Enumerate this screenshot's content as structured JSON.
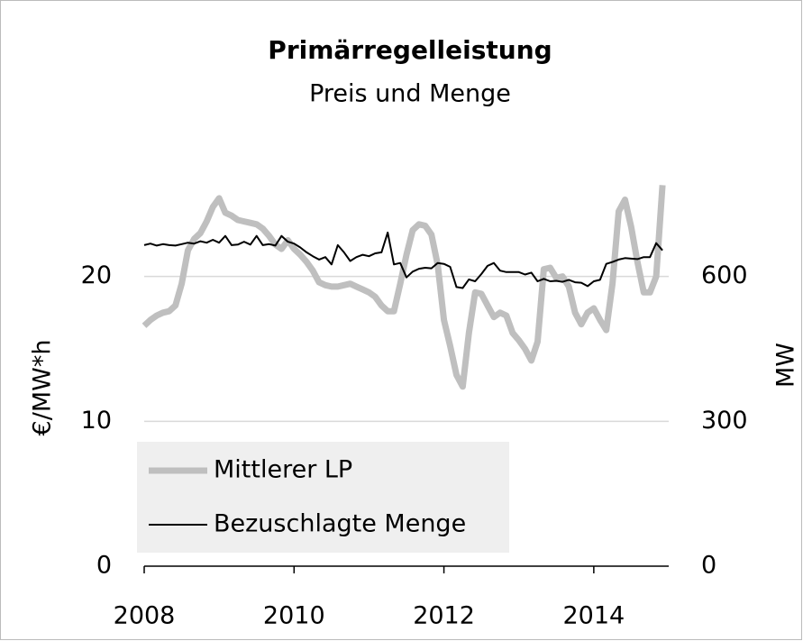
{
  "chart_data": {
    "type": "line",
    "title": "Primärregelleistung",
    "subtitle": "Preis und Menge",
    "ylabel": "€/MW*h",
    "y2label": "MW",
    "x": [
      2008,
      2008.083,
      2008.167,
      2008.25,
      2008.333,
      2008.417,
      2008.5,
      2008.583,
      2008.667,
      2008.75,
      2008.833,
      2008.917,
      2009,
      2009.083,
      2009.167,
      2009.25,
      2009.333,
      2009.417,
      2009.5,
      2009.583,
      2009.667,
      2009.75,
      2009.833,
      2009.917,
      2010,
      2010.083,
      2010.167,
      2010.25,
      2010.333,
      2010.417,
      2010.5,
      2010.583,
      2010.667,
      2010.75,
      2010.833,
      2010.917,
      2011,
      2011.083,
      2011.167,
      2011.25,
      2011.333,
      2011.417,
      2011.5,
      2011.583,
      2011.667,
      2011.75,
      2011.833,
      2011.917,
      2012,
      2012.083,
      2012.167,
      2012.25,
      2012.333,
      2012.417,
      2012.5,
      2012.583,
      2012.667,
      2012.75,
      2012.833,
      2012.917,
      2013,
      2013.083,
      2013.167,
      2013.25,
      2013.333,
      2013.417,
      2013.5,
      2013.583,
      2013.667,
      2013.75,
      2013.833,
      2013.917,
      2014,
      2014.083,
      2014.167,
      2014.25,
      2014.333,
      2014.417,
      2014.5,
      2014.583,
      2014.667,
      2014.75,
      2014.833,
      2014.917
    ],
    "series": [
      {
        "name": "Mittlerer LP",
        "color": "#bfbfbf",
        "width": 7,
        "values": [
          16.6,
          17.0,
          17.3,
          17.5,
          17.6,
          18.0,
          19.5,
          21.8,
          22.6,
          23.0,
          23.8,
          24.8,
          25.4,
          24.4,
          24.2,
          23.9,
          23.8,
          23.7,
          23.6,
          23.3,
          22.8,
          22.2,
          21.9,
          22.5,
          21.9,
          21.5,
          21.0,
          20.4,
          19.6,
          19.4,
          19.3,
          19.3,
          19.4,
          19.5,
          19.3,
          19.1,
          18.9,
          18.6,
          18.0,
          17.6,
          17.6,
          19.5,
          21.5,
          23.2,
          23.6,
          23.5,
          22.9,
          20.8,
          17.0,
          15.2,
          13.2,
          12.4,
          16.1,
          18.9,
          18.8,
          18.0,
          17.2,
          17.5,
          17.3,
          16.1,
          15.6,
          15.0,
          14.2,
          15.5,
          20.5,
          20.6,
          19.9,
          20.0,
          19.3,
          17.5,
          16.7,
          17.5,
          17.8,
          17.0,
          16.3,
          19.5,
          24.5,
          25.3,
          23.4,
          21.0,
          18.9,
          18.9,
          20.0,
          26.3
        ]
      },
      {
        "name": "Bezuschlagte Menge",
        "color": "#000000",
        "width": 2,
        "axis": "y2",
        "values": [
          665,
          668,
          664,
          667,
          665,
          664,
          667,
          670,
          668,
          673,
          670,
          676,
          670,
          684,
          665,
          666,
          672,
          666,
          684,
          665,
          667,
          664,
          684,
          672,
          668,
          660,
          650,
          642,
          635,
          640,
          625,
          665,
          650,
          632,
          640,
          645,
          642,
          648,
          650,
          691,
          625,
          628,
          598,
          610,
          616,
          618,
          617,
          628,
          626,
          620,
          578,
          576,
          594,
          590,
          605,
          622,
          628,
          612,
          609,
          609,
          609,
          604,
          608,
          590,
          595,
          590,
          591,
          589,
          593,
          588,
          587,
          580,
          590,
          593,
          626,
          630,
          635,
          638,
          637,
          636,
          640,
          640,
          669,
          654
        ]
      }
    ],
    "xlim": [
      2008,
      2015
    ],
    "xticks": [
      2008,
      2010,
      2012,
      2014
    ],
    "ylim": [
      0,
      30
    ],
    "yticks": [
      0,
      10,
      20
    ],
    "y2lim": [
      0,
      900
    ],
    "y2ticks": [
      0,
      300,
      600
    ],
    "grid": true,
    "legend": "lower left"
  }
}
